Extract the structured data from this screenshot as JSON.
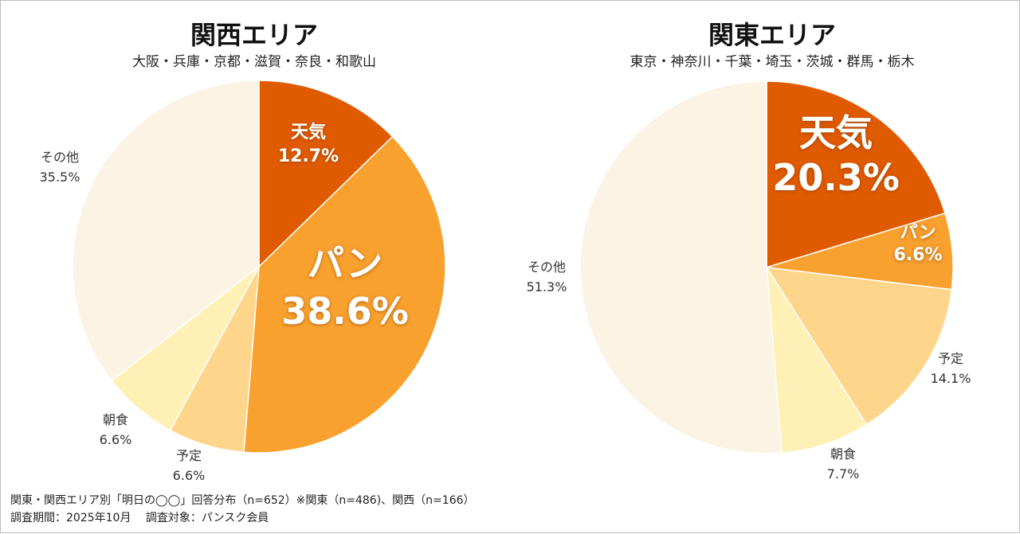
{
  "chart_data": [
    {
      "type": "pie",
      "title": "関西エリア",
      "subtitle": "大阪・兵庫・京都・滋賀・奈良・和歌山",
      "slices": [
        {
          "label": "天気",
          "value": 12.7,
          "value_text": "12.7%",
          "color": "#e05a00"
        },
        {
          "label": "パン",
          "value": 38.6,
          "value_text": "38.6%",
          "color": "#f9a12e"
        },
        {
          "label": "予定",
          "value": 6.6,
          "value_text": "6.6%",
          "color": "#fdd68b"
        },
        {
          "label": "朝食",
          "value": 6.6,
          "value_text": "6.6%",
          "color": "#fff0b5"
        },
        {
          "label": "その他",
          "value": 35.5,
          "value_text": "35.5%",
          "color": "#fbf3e4"
        }
      ]
    },
    {
      "type": "pie",
      "title": "関東エリア",
      "subtitle": "東京・神奈川・千葉・埼玉・茨城・群馬・栃木",
      "slices": [
        {
          "label": "天気",
          "value": 20.3,
          "value_text": "20.3%",
          "color": "#e05a00"
        },
        {
          "label": "パン",
          "value": 6.6,
          "value_text": "6.6%",
          "color": "#f9a12e"
        },
        {
          "label": "予定",
          "value": 14.1,
          "value_text": "14.1%",
          "color": "#fdd68b"
        },
        {
          "label": "朝食",
          "value": 7.7,
          "value_text": "7.7%",
          "color": "#fff0b5"
        },
        {
          "label": "その他",
          "value": 51.3,
          "value_text": "51.3%",
          "color": "#fbf3e4"
        }
      ]
    }
  ],
  "footer": {
    "line1": "関東・関西エリア別「明日の◯◯」回答分布（n=652）※関東（n=486)、関西（n=166）",
    "line2": "調査期間：2025年10月　 調査対象：パンスク会員"
  }
}
